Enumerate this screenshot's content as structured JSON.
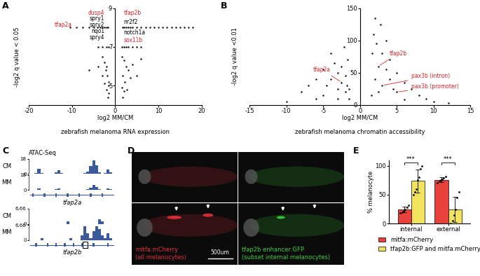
{
  "chart_data": [
    {
      "panel_label": "A",
      "type": "scatter",
      "xlabel": "log2 MM/CM",
      "caption": "zebrafish melanoma RNA expression",
      "ylabel": "-log2 q value < 0.05",
      "xlim": [
        -20,
        20
      ],
      "xticks": [
        -20,
        -10,
        0,
        10,
        20
      ],
      "ylim": [
        4,
        9
      ],
      "yticks": [
        5,
        7,
        9
      ],
      "color": "#000000",
      "x": [
        -10.5,
        -9,
        -7.5,
        -6,
        -5,
        -4.2,
        -3.5,
        -3,
        -2.5,
        -2,
        -1.7,
        1.7,
        2,
        2.5,
        3,
        3.5,
        4,
        5,
        6,
        7,
        8,
        9,
        10,
        11,
        12,
        13,
        14,
        15,
        16,
        17,
        18,
        -4,
        -3,
        -2,
        -1.6,
        1.6,
        2,
        2.5,
        3,
        4,
        5,
        6,
        -3,
        -2.5,
        -2,
        -2.2,
        -1.8,
        -1.6,
        -1.5,
        -2,
        -1.5,
        -3,
        -4,
        -1.7,
        -6,
        -2.5,
        1.6,
        2,
        2.5,
        3,
        1.8,
        2.2,
        1.6,
        2,
        3.5,
        4,
        1.7,
        2.7,
        5,
        6
      ],
      "y": [
        8,
        8,
        8,
        8,
        8,
        8,
        8,
        8,
        8,
        8,
        8,
        8,
        8,
        8,
        8,
        8,
        8,
        8,
        8,
        8,
        8,
        8,
        8,
        8,
        8,
        8,
        8,
        8,
        8,
        8,
        8,
        7,
        7,
        7,
        7,
        7,
        7,
        7,
        7,
        7,
        7,
        7,
        6.5,
        6.2,
        6.0,
        5.8,
        5.5,
        5.2,
        5.0,
        4.8,
        4.6,
        5.5,
        6.0,
        4.4,
        5.8,
        5.1,
        6.5,
        6.3,
        6.0,
        5.8,
        5.5,
        5.2,
        4.9,
        4.7,
        5.4,
        6.1,
        4.4,
        4.8,
        5.5,
        6.4
      ],
      "annotations": [
        {
          "text": "dusp4",
          "x": -2.5,
          "y": 8.75,
          "color": "#e0262b"
        },
        {
          "text": "spry1",
          "x": -2.5,
          "y": 8.45,
          "color": "#000000"
        },
        {
          "text": "spry2",
          "x": -2.5,
          "y": 8.15,
          "color": "#000000"
        },
        {
          "text": "tfap2a",
          "x": -10,
          "y": 8.15,
          "color": "#e0262b"
        },
        {
          "text": "nqo1",
          "x": -2.5,
          "y": 7.8,
          "color": "#000000"
        },
        {
          "text": "spry4",
          "x": -2.5,
          "y": 7.5,
          "color": "#000000"
        },
        {
          "text": "tfap2b",
          "x": 2,
          "y": 8.75,
          "color": "#e0262b"
        },
        {
          "text": "nr2f2",
          "x": 2,
          "y": 8.3,
          "color": "#000000"
        },
        {
          "text": "notch1a",
          "x": 2,
          "y": 7.75,
          "color": "#000000"
        },
        {
          "text": "sox11b",
          "x": 2,
          "y": 7.35,
          "color": "#e0262b"
        }
      ]
    },
    {
      "panel_label": "B",
      "type": "scatter",
      "xlabel": "log2 MM/CM",
      "caption": "zebrafish melanoma chromatin accessibility",
      "ylabel": "-log2 q value <0.01",
      "xlim": [
        -15,
        15
      ],
      "xticks": [
        -15,
        -10,
        -5,
        0,
        5,
        10,
        15
      ],
      "ylim": [
        0,
        150
      ],
      "yticks": [
        0,
        50,
        100,
        150
      ],
      "color": "#000000",
      "x": [
        -1.5,
        -2,
        -2.5,
        -3,
        -3.5,
        -4,
        -2,
        -1.8,
        -3,
        -4,
        -5,
        -6,
        -7,
        -8,
        -5,
        -3,
        -2.5,
        -1.5,
        -4.5,
        -2.2,
        -1.7,
        -10,
        -6,
        1.5,
        2,
        2.5,
        3,
        3.5,
        2,
        1.8,
        2.2,
        4,
        5,
        6,
        7,
        8,
        9,
        3,
        4,
        2.5,
        6,
        10,
        12,
        5,
        3.5,
        1.6,
        2.8,
        4.5
      ],
      "y": [
        10,
        20,
        35,
        50,
        65,
        80,
        45,
        30,
        25,
        40,
        55,
        40,
        30,
        20,
        15,
        10,
        60,
        25,
        30,
        90,
        70,
        5,
        10,
        15,
        40,
        60,
        80,
        100,
        135,
        110,
        95,
        70,
        50,
        35,
        25,
        15,
        10,
        30,
        40,
        20,
        8,
        5,
        3,
        20,
        55,
        80,
        125,
        25
      ],
      "annotations": [
        {
          "text": "tfap2a",
          "x": -4,
          "y": 55,
          "point_x": -2.5,
          "point_y": 35,
          "color": "#e0262b"
        },
        {
          "text": "tfap2b",
          "x": 4,
          "y": 80,
          "point_x": 2.5,
          "point_y": 60,
          "color": "#e0262b"
        },
        {
          "text": "pax3b (intron)",
          "x": 7,
          "y": 45,
          "point_x": 3,
          "point_y": 30,
          "color": "#e0262b"
        },
        {
          "text": "pax3b (promoter)",
          "x": 7,
          "y": 28,
          "point_x": 5,
          "point_y": 20,
          "color": "#e0262b"
        }
      ]
    },
    {
      "panel_label": "C",
      "type": "tracks",
      "title": "ATAC-Seq",
      "color": "#3a5a9c",
      "genes": [
        {
          "name": "tfap2a",
          "exons": [
            1,
            5,
            9,
            13,
            17,
            21,
            25
          ],
          "tracks": [
            {
              "name": "CM",
              "ylim": [
                0,
                18
              ],
              "yticks": [
                0,
                18
              ],
              "values": [
                0,
                0,
                1,
                6,
                1,
                0,
                0,
                0,
                0,
                2,
                4,
                1,
                0,
                0,
                0,
                0,
                0,
                0,
                0,
                1,
                3,
                9,
                16,
                10,
                2,
                0,
                1,
                5,
                2,
                0
              ]
            },
            {
              "name": "MM",
              "ylim": [
                0,
                18
              ],
              "yticks": [
                0,
                18
              ],
              "values": [
                0,
                0,
                0,
                2,
                0,
                0,
                0,
                0,
                0,
                1,
                2,
                0,
                0,
                0,
                0,
                0,
                0,
                0,
                0,
                0,
                1,
                3,
                6,
                4,
                1,
                0,
                0,
                2,
                1,
                0
              ]
            }
          ]
        },
        {
          "name": "tfap2b",
          "exons": [
            2,
            6,
            9,
            12,
            15,
            18,
            22,
            27
          ],
          "highlight_bin": 19,
          "tracks": [
            {
              "name": "CM",
              "ylim": [
                0,
                6.66
              ],
              "yticks": [
                0,
                6.66
              ],
              "values": [
                0,
                0,
                0,
                0,
                0,
                0,
                0,
                0,
                0,
                0,
                0,
                0,
                0,
                1,
                0,
                0,
                0,
                0,
                0,
                0,
                0,
                0,
                0,
                0,
                2,
                1,
                0,
                0,
                0,
                0
              ]
            },
            {
              "name": "MM",
              "ylim": [
                0,
                6.66
              ],
              "yticks": [
                0,
                6.66
              ],
              "values": [
                0,
                0,
                0,
                0,
                1,
                0,
                0,
                0,
                0,
                0,
                0,
                0,
                0,
                0,
                1,
                0,
                0,
                0,
                2,
                6,
                3,
                1,
                4,
                6,
                5,
                2,
                1,
                3,
                1,
                0
              ]
            }
          ]
        }
      ]
    },
    {
      "panel_label": "D",
      "type": "image",
      "scale_bar": "500um",
      "panels": [
        {
          "color": "#e0303a",
          "lines": [
            "mitfa:mCherry",
            "(all melanocytes)"
          ]
        },
        {
          "color": "#3ccf3c",
          "lines": [
            "tfap2b enhancer:GFP",
            "(subset internal melanocytes)"
          ]
        }
      ]
    },
    {
      "panel_label": "E",
      "type": "bar",
      "categories": [
        "internal",
        "external"
      ],
      "ylabel": "% melanocyte",
      "ylim": [
        0,
        110
      ],
      "yticks": [
        0,
        50,
        100
      ],
      "legend": "upper center",
      "significance": [
        "***",
        "***"
      ],
      "series": [
        {
          "name": "mitfa:mCherry",
          "color": "#e8413b",
          "values": [
            24,
            76
          ],
          "errors": [
            5,
            4
          ],
          "points": [
            [
              18,
              20,
              22,
              24,
              28,
              32
            ],
            [
              70,
              73,
              75,
              77,
              79,
              82
            ]
          ]
        },
        {
          "name": "tfap2b:GFP and mitfa:mCherry",
          "color": "#f2e35e",
          "values": [
            74,
            24
          ],
          "errors": [
            20,
            22
          ],
          "points": [
            [
              50,
              55,
              60,
              75,
              80,
              95,
              100
            ],
            [
              0,
              5,
              15,
              25,
              45,
              55
            ]
          ]
        }
      ]
    }
  ]
}
